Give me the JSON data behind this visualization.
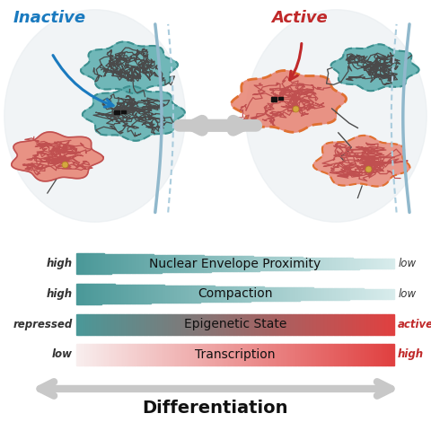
{
  "bg_color": "#ffffff",
  "title": "Differentiation",
  "bars": [
    {
      "label": "Nuclear Envelope Proximity",
      "left_text": "high",
      "right_text": "low",
      "color_left": "#4a9898",
      "color_right": "#d8ecec"
    },
    {
      "label": "Compaction",
      "left_text": "high",
      "right_text": "low",
      "color_left": "#4a9898",
      "color_right": "#d8ecec"
    },
    {
      "label": "Epigenetic State",
      "left_text": "repressed",
      "right_text": "active",
      "color_left": "#4a9898",
      "color_right": "#e04040"
    },
    {
      "label": "Transcription",
      "left_text": "low",
      "right_text": "high",
      "color_left": "#f8eeee",
      "color_right": "#e04040"
    }
  ],
  "inactive_label": "Inactive",
  "active_label": "Active",
  "inactive_color": "#1a7abf",
  "active_color": "#c0292a",
  "teal_fill": "#5aadad",
  "teal_edge": "#3d8f8f",
  "salmon_fill": "#e88878",
  "salmon_edge": "#c05050",
  "orange_edge": "#e07030",
  "gold_color": "#d4a840",
  "envelope_color": "#90b8cc",
  "envelope_dash": "#aaccdd",
  "cell_bg_color": "#e8edf0",
  "arrow_center_color": "#c8c8c8",
  "chromatin_dark": "#4a4a4a"
}
